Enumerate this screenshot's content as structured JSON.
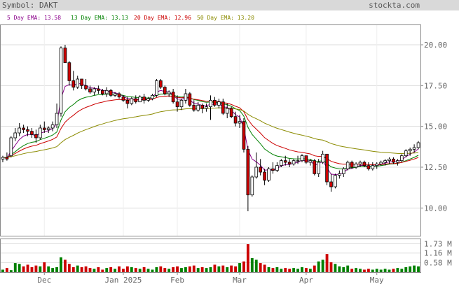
{
  "header": {
    "symbol_text": "Symbol: DAKT",
    "site": "stockta.com",
    "bg_color": "#d9d9d9"
  },
  "legend": [
    {
      "label": "5 Day EMA: 13.58",
      "color": "#8b008b"
    },
    {
      "label": "13 Day EMA: 13.13",
      "color": "#008000"
    },
    {
      "label": "20 Day EMA: 12.96",
      "color": "#cc0000"
    },
    {
      "label": "50 Day EMA: 13.20",
      "color": "#8b8b00"
    }
  ],
  "chart_data": {
    "type": "candlestick",
    "title": "",
    "price_ticks": [
      "20.00",
      "17.50",
      "15.00",
      "12.50",
      "10.00"
    ],
    "price_ylim": [
      8.3,
      21.2
    ],
    "volume_ticks": [
      "1.73 M",
      "1.16 M",
      "0.58 M"
    ],
    "volume_max": 2.0,
    "x_labels": [
      {
        "label": "Dec",
        "index": 10
      },
      {
        "label": "Jan 2025",
        "index": 29
      },
      {
        "label": "Feb",
        "index": 42
      },
      {
        "label": "Mar",
        "index": 57
      },
      {
        "label": "Apr",
        "index": 73
      },
      {
        "label": "May",
        "index": 90
      }
    ],
    "candles": [
      [
        13.0,
        13.2,
        12.8,
        13.1,
        0.15
      ],
      [
        13.1,
        13.4,
        12.9,
        13.0,
        0.25
      ],
      [
        13.2,
        14.4,
        13.1,
        14.3,
        0.12
      ],
      [
        14.3,
        14.9,
        14.1,
        14.6,
        0.55
      ],
      [
        14.6,
        15.2,
        14.4,
        14.9,
        0.5
      ],
      [
        14.9,
        15.1,
        14.6,
        14.8,
        0.35
      ],
      [
        14.8,
        15.0,
        14.4,
        14.7,
        0.45
      ],
      [
        14.7,
        14.9,
        14.3,
        14.5,
        0.3
      ],
      [
        14.5,
        14.8,
        14.0,
        14.3,
        0.4
      ],
      [
        14.3,
        15.1,
        14.2,
        14.9,
        0.35
      ],
      [
        14.9,
        15.3,
        14.6,
        14.8,
        0.6
      ],
      [
        14.8,
        15.0,
        14.6,
        14.9,
        0.35
      ],
      [
        14.9,
        15.3,
        14.7,
        15.1,
        0.25
      ],
      [
        15.1,
        16.4,
        14.9,
        15.8,
        0.3
      ],
      [
        15.8,
        19.9,
        15.6,
        19.8,
        0.9
      ],
      [
        19.8,
        20.0,
        18.9,
        18.9,
        0.75
      ],
      [
        18.9,
        19.0,
        17.5,
        17.8,
        0.5
      ],
      [
        17.8,
        18.4,
        17.2,
        17.4,
        0.3
      ],
      [
        17.4,
        18.1,
        17.3,
        17.9,
        0.4
      ],
      [
        17.9,
        17.9,
        17.3,
        17.5,
        0.3
      ],
      [
        17.5,
        17.9,
        17.2,
        17.3,
        0.35
      ],
      [
        17.3,
        17.5,
        17.0,
        17.1,
        0.25
      ],
      [
        17.1,
        17.4,
        16.9,
        17.3,
        0.2
      ],
      [
        17.3,
        17.5,
        17.0,
        17.2,
        0.3
      ],
      [
        17.2,
        17.3,
        16.9,
        17.0,
        0.15
      ],
      [
        17.0,
        17.4,
        16.8,
        17.2,
        0.25
      ],
      [
        17.2,
        17.3,
        16.8,
        16.9,
        0.3
      ],
      [
        16.9,
        17.1,
        16.8,
        17.0,
        0.2
      ],
      [
        17.0,
        17.1,
        16.7,
        16.8,
        0.35
      ],
      [
        16.8,
        16.9,
        16.5,
        16.6,
        0.2
      ],
      [
        16.6,
        16.8,
        16.1,
        16.4,
        0.35
      ],
      [
        16.4,
        16.8,
        16.3,
        16.7,
        0.3
      ],
      [
        16.7,
        16.9,
        16.4,
        16.5,
        0.25
      ],
      [
        16.5,
        16.9,
        16.5,
        16.8,
        0.2
      ],
      [
        16.8,
        17.0,
        16.4,
        16.6,
        0.3
      ],
      [
        16.6,
        16.8,
        16.5,
        16.7,
        0.2
      ],
      [
        16.7,
        17.0,
        16.6,
        16.9,
        0.15
      ],
      [
        16.9,
        17.9,
        16.8,
        17.8,
        0.3
      ],
      [
        17.8,
        17.9,
        17.3,
        17.4,
        0.35
      ],
      [
        17.4,
        17.5,
        16.9,
        17.0,
        0.25
      ],
      [
        17.0,
        17.2,
        16.8,
        17.1,
        0.2
      ],
      [
        17.1,
        17.3,
        16.4,
        16.5,
        0.3
      ],
      [
        16.5,
        16.9,
        15.9,
        16.2,
        0.35
      ],
      [
        16.2,
        16.7,
        16.0,
        16.6,
        0.25
      ],
      [
        16.6,
        17.3,
        16.4,
        17.0,
        0.3
      ],
      [
        17.0,
        17.1,
        16.2,
        16.3,
        0.35
      ],
      [
        16.3,
        16.6,
        15.9,
        16.0,
        0.4
      ],
      [
        16.0,
        16.5,
        15.9,
        16.3,
        0.25
      ],
      [
        16.3,
        16.4,
        15.8,
        16.1,
        0.3
      ],
      [
        16.1,
        16.4,
        15.9,
        16.2,
        0.25
      ],
      [
        16.2,
        16.9,
        15.4,
        16.6,
        0.3
      ],
      [
        16.6,
        16.8,
        16.2,
        16.3,
        0.45
      ],
      [
        16.3,
        16.7,
        16.1,
        16.5,
        0.35
      ],
      [
        16.5,
        16.7,
        15.7,
        15.8,
        0.4
      ],
      [
        15.8,
        16.4,
        15.5,
        16.1,
        0.3
      ],
      [
        16.1,
        16.2,
        15.5,
        15.6,
        0.4
      ],
      [
        15.6,
        15.9,
        15.0,
        15.2,
        0.35
      ],
      [
        15.2,
        15.7,
        14.9,
        15.3,
        0.55
      ],
      [
        15.3,
        15.5,
        13.4,
        13.6,
        0.65
      ],
      [
        13.6,
        13.8,
        9.8,
        10.8,
        1.7
      ],
      [
        10.8,
        12.0,
        10.7,
        11.9,
        0.85
      ],
      [
        11.9,
        13.4,
        11.8,
        12.5,
        0.75
      ],
      [
        12.5,
        13.0,
        12.0,
        12.2,
        0.55
      ],
      [
        12.2,
        12.4,
        11.4,
        11.7,
        0.45
      ],
      [
        11.7,
        12.5,
        11.6,
        12.4,
        0.3
      ],
      [
        12.4,
        12.8,
        12.1,
        12.3,
        0.25
      ],
      [
        12.3,
        12.8,
        12.2,
        12.6,
        0.3
      ],
      [
        12.6,
        13.0,
        12.5,
        12.9,
        0.2
      ],
      [
        12.9,
        13.2,
        12.6,
        12.8,
        0.25
      ],
      [
        12.8,
        13.0,
        12.5,
        12.7,
        0.2
      ],
      [
        12.7,
        13.0,
        12.6,
        12.9,
        0.25
      ],
      [
        12.9,
        13.2,
        12.7,
        12.9,
        0.2
      ],
      [
        12.9,
        13.3,
        12.8,
        13.2,
        0.3
      ],
      [
        13.2,
        13.2,
        12.7,
        12.8,
        0.25
      ],
      [
        12.8,
        13.0,
        12.6,
        12.9,
        0.2
      ],
      [
        12.9,
        13.0,
        12.0,
        12.1,
        0.4
      ],
      [
        12.1,
        13.0,
        11.9,
        12.8,
        0.65
      ],
      [
        12.8,
        13.5,
        12.7,
        13.3,
        0.75
      ],
      [
        13.3,
        13.3,
        11.4,
        11.6,
        1.1
      ],
      [
        11.6,
        12.1,
        11.0,
        11.3,
        0.6
      ],
      [
        11.3,
        12.1,
        11.2,
        12.0,
        0.5
      ],
      [
        12.0,
        12.3,
        11.8,
        12.1,
        0.35
      ],
      [
        12.1,
        12.5,
        11.9,
        12.4,
        0.3
      ],
      [
        12.4,
        12.9,
        12.3,
        12.8,
        0.4
      ],
      [
        12.8,
        12.9,
        12.4,
        12.5,
        0.2
      ],
      [
        12.5,
        12.8,
        12.4,
        12.7,
        0.25
      ],
      [
        12.7,
        12.9,
        12.5,
        12.8,
        0.2
      ],
      [
        12.8,
        12.9,
        12.5,
        12.6,
        0.15
      ],
      [
        12.6,
        12.8,
        12.3,
        12.4,
        0.2
      ],
      [
        12.4,
        12.8,
        12.3,
        12.6,
        0.15
      ],
      [
        12.6,
        12.8,
        12.4,
        12.7,
        0.2
      ],
      [
        12.7,
        12.9,
        12.6,
        12.8,
        0.15
      ],
      [
        12.8,
        13.0,
        12.6,
        12.9,
        0.2
      ],
      [
        12.9,
        13.1,
        12.7,
        13.0,
        0.15
      ],
      [
        13.0,
        13.1,
        12.7,
        12.8,
        0.2
      ],
      [
        12.8,
        13.0,
        12.6,
        12.9,
        0.25
      ],
      [
        12.9,
        13.3,
        12.8,
        13.2,
        0.2
      ],
      [
        13.2,
        13.6,
        13.1,
        13.5,
        0.3
      ],
      [
        13.5,
        13.7,
        13.2,
        13.6,
        0.35
      ],
      [
        13.6,
        13.9,
        13.4,
        13.7,
        0.4
      ],
      [
        13.7,
        14.1,
        13.6,
        14.0,
        0.35
      ]
    ],
    "ema": [
      {
        "name": "5 Day EMA",
        "color": "#8b008b",
        "period": 5
      },
      {
        "name": "13 Day EMA",
        "color": "#008000",
        "period": 13
      },
      {
        "name": "20 Day EMA",
        "color": "#cc0000",
        "period": 20
      },
      {
        "name": "50 Day EMA",
        "color": "#8b8b00",
        "period": 50
      }
    ]
  }
}
